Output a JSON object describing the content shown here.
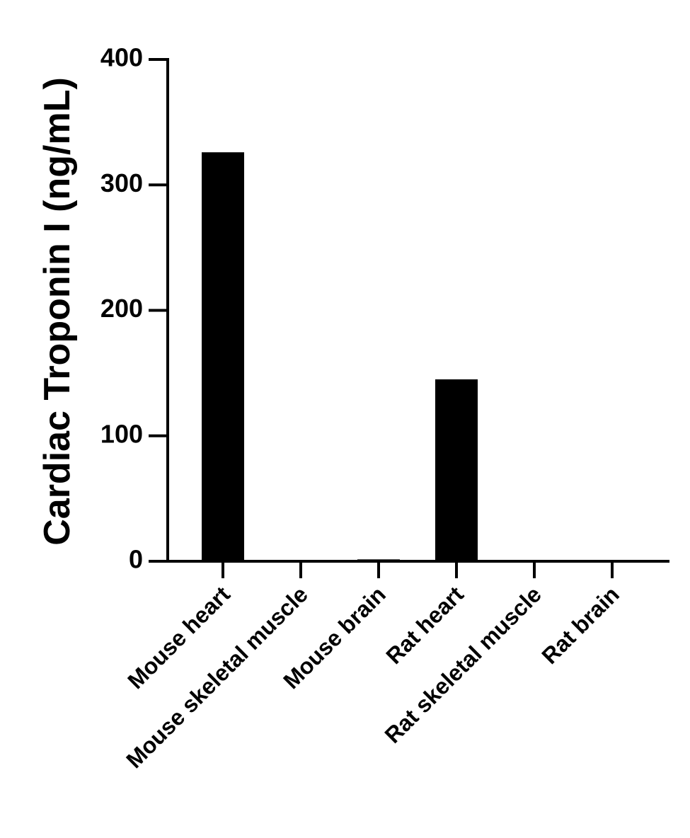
{
  "chart_data": {
    "type": "bar",
    "y_label": "Cardiac Troponin I (ng/mL)",
    "categories": [
      "Mouse heart",
      "Mouse skeletal muscle",
      "Mouse brain",
      "Rat heart",
      "Rat skeletal muscle",
      "Rat brain"
    ],
    "values": [
      326,
      0,
      1.5,
      145,
      0,
      0
    ],
    "color": "#000000",
    "ylim": [
      0,
      400
    ],
    "yticks": [
      0,
      100,
      200,
      300,
      400
    ],
    "grid": false
  }
}
